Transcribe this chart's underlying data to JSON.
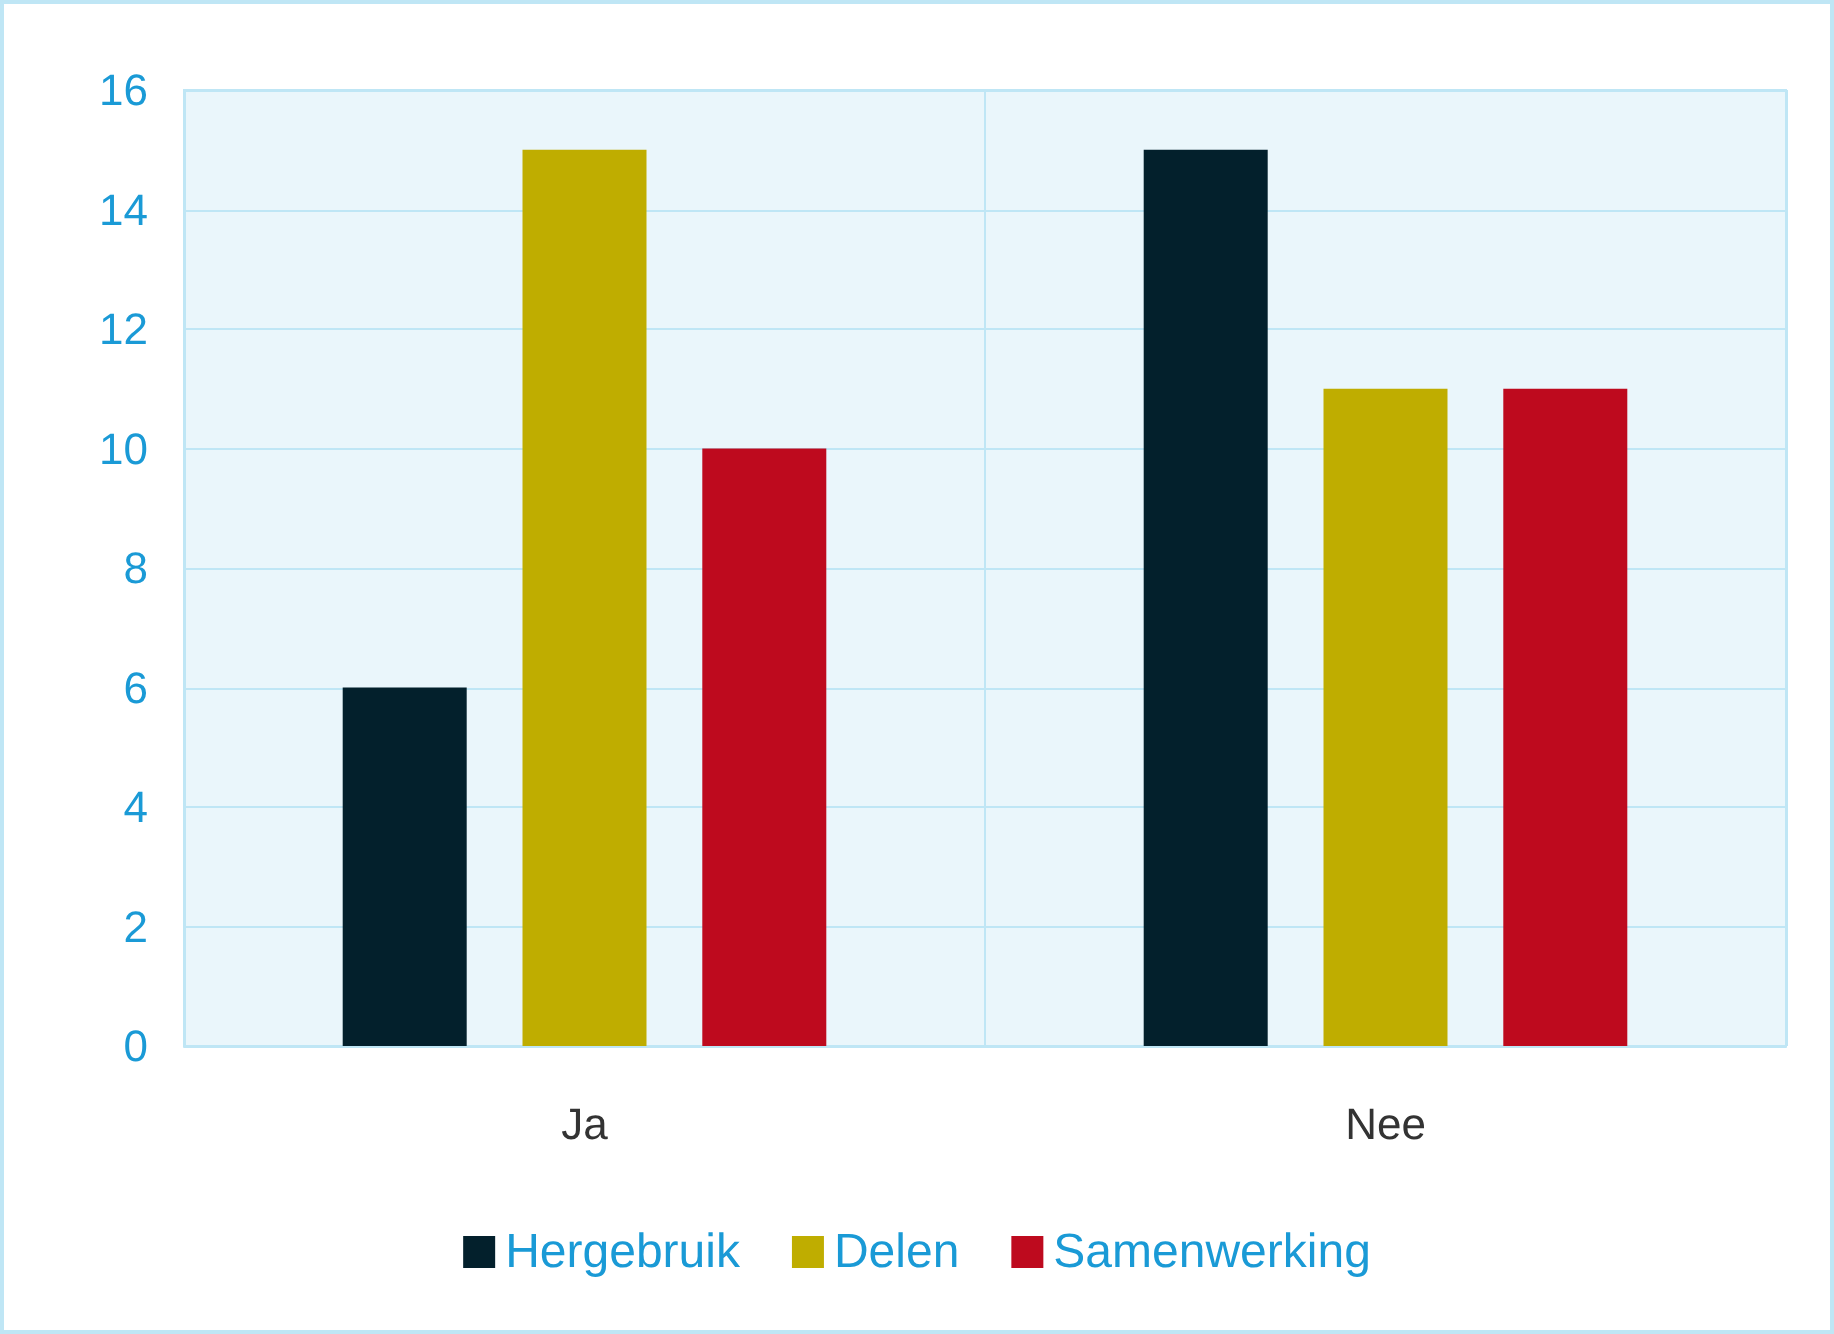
{
  "chart_data": {
    "type": "bar",
    "categories": [
      "Ja",
      "Nee"
    ],
    "series": [
      {
        "name": "Hergebruik",
        "color": "#03202c",
        "values": [
          6,
          15
        ]
      },
      {
        "name": "Delen",
        "color": "#bfad00",
        "values": [
          15,
          11
        ]
      },
      {
        "name": "Samenwerking",
        "color": "#be0a1e",
        "values": [
          10,
          11
        ]
      }
    ],
    "ylim": [
      0,
      16
    ],
    "yticks": [
      0,
      2,
      4,
      6,
      8,
      10,
      12,
      14,
      16
    ],
    "grid": true,
    "legend": "bottom"
  }
}
